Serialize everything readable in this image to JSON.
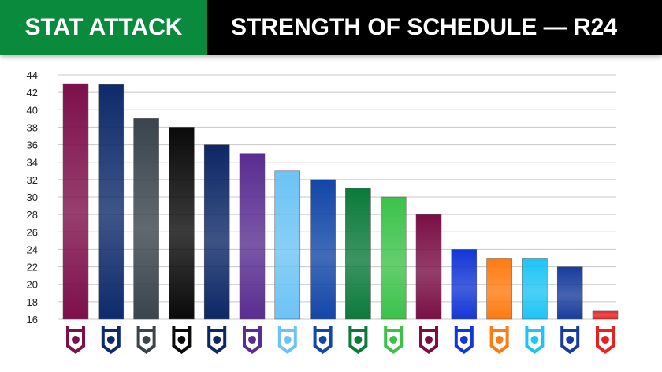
{
  "header": {
    "brand": "STAT ATTACK",
    "title": "STRENGTH OF SCHEDULE — R24"
  },
  "chart_data": {
    "type": "bar",
    "title": "STRENGTH OF SCHEDULE — R24",
    "ylim": [
      16,
      44
    ],
    "yticks": [
      16,
      18,
      20,
      22,
      24,
      26,
      28,
      30,
      32,
      34,
      36,
      38,
      40,
      42,
      44
    ],
    "grid": true,
    "categories": [
      "sea-eagles-logo",
      "cowboys-logo",
      "panthers-logo",
      "warriors-logo",
      "roosters-logo",
      "storm-logo",
      "sharks-logo",
      "eels-logo",
      "rabbitohs-logo",
      "raiders-logo",
      "broncos-logo",
      "bulldogs-logo",
      "wests-tigers-logo",
      "titans-logo",
      "knights-logo",
      "dragons-logo"
    ],
    "values": [
      43,
      42.9,
      39,
      38,
      36,
      35,
      33,
      32,
      31,
      30,
      28,
      24,
      23,
      23,
      22,
      17
    ],
    "colors": [
      "#7d0f4a",
      "#0e2a6b",
      "#3a444c",
      "#0a0a0a",
      "#0d2766",
      "#5a2d91",
      "#6cc3f5",
      "#1246a8",
      "#0b7a3a",
      "#3cc24a",
      "#7a0e45",
      "#1336d6",
      "#ff7a10",
      "#1ec4f5",
      "#173c9c",
      "#e8201f"
    ]
  }
}
